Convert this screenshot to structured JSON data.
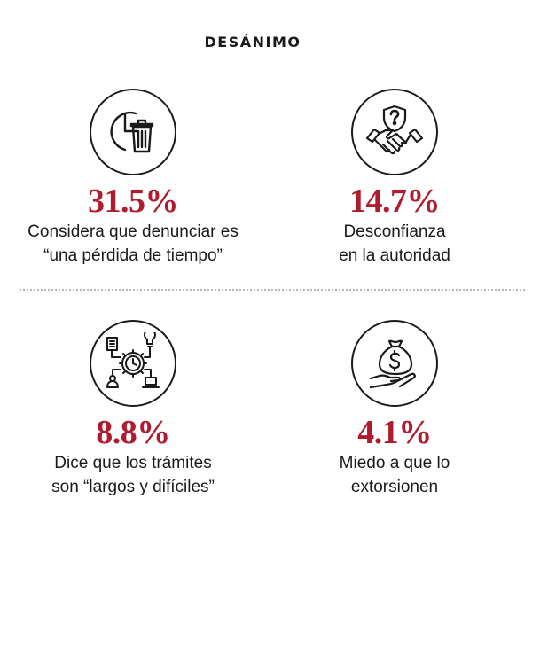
{
  "title": "DESÁNIMO",
  "colors": {
    "accent": "#b01c2e",
    "ink": "#1a1a1a",
    "divider": "#b8b8b8"
  },
  "stats": [
    {
      "icon": "clock-trash-icon",
      "value": "31.5%",
      "line1": "Considera que denunciar es",
      "line2": "“una pérdida de tiempo”"
    },
    {
      "icon": "handshake-shield-question-icon",
      "value": "14.7%",
      "line1": "Desconfianza",
      "line2": "en la autoridad"
    },
    {
      "icon": "process-gear-icon",
      "value": "8.8%",
      "line1": "Dice que los trámites",
      "line2": "son “largos y difíciles”"
    },
    {
      "icon": "money-bag-hand-icon",
      "value": "4.1%",
      "line1": "Miedo a que lo",
      "line2": "extorsionen"
    }
  ]
}
